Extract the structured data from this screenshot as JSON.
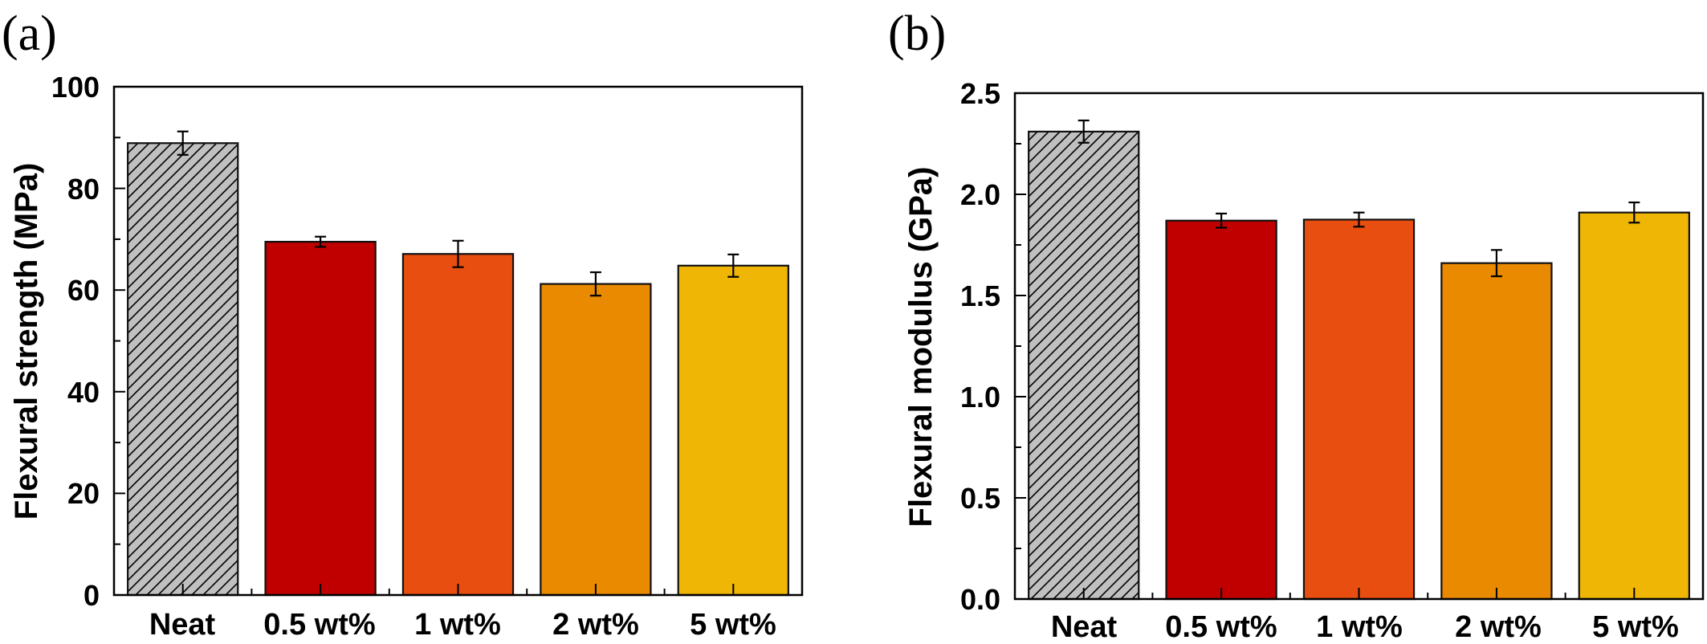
{
  "chart_data": [
    {
      "type": "bar",
      "panel_label": "(a)",
      "title": "",
      "xlabel": "",
      "ylabel": "Flexural strength (MPa)",
      "categories": [
        "Neat",
        "0.5 wt%",
        "1 wt%",
        "2 wt%",
        "5 wt%"
      ],
      "values": [
        88.9,
        69.5,
        67.1,
        61.2,
        64.8
      ],
      "errors": [
        2.3,
        1.0,
        2.6,
        2.3,
        2.2
      ],
      "colors": [
        "#C0C0C0",
        "#C00000",
        "#E84E0F",
        "#E98A00",
        "#F0B606"
      ],
      "hatched": [
        true,
        false,
        false,
        false,
        false
      ],
      "ylim": [
        0,
        100
      ],
      "yticks": [
        0,
        20,
        40,
        60,
        80,
        100
      ],
      "ytick_labels": [
        "0",
        "20",
        "40",
        "60",
        "80",
        "100"
      ],
      "minor_step": 10,
      "grid": false,
      "legend": "none"
    },
    {
      "type": "bar",
      "panel_label": "(b)",
      "title": "",
      "xlabel": "",
      "ylabel": "Flexural modulus (GPa)",
      "categories": [
        "Neat",
        "0.5 wt%",
        "1 wt%",
        "2 wt%",
        "5 wt%"
      ],
      "values": [
        2.31,
        1.87,
        1.875,
        1.66,
        1.91
      ],
      "errors": [
        0.055,
        0.035,
        0.035,
        0.065,
        0.05
      ],
      "colors": [
        "#C0C0C0",
        "#C00000",
        "#E84E0F",
        "#E98A00",
        "#F0B606"
      ],
      "hatched": [
        true,
        false,
        false,
        false,
        false
      ],
      "ylim": [
        0,
        2.5
      ],
      "yticks": [
        0,
        0.5,
        1.0,
        1.5,
        2.0,
        2.5
      ],
      "ytick_labels": [
        "0.0",
        "0.5",
        "1.0",
        "1.5",
        "2.0",
        "2.5"
      ],
      "minor_step": 0.25,
      "grid": false,
      "legend": "none"
    }
  ]
}
